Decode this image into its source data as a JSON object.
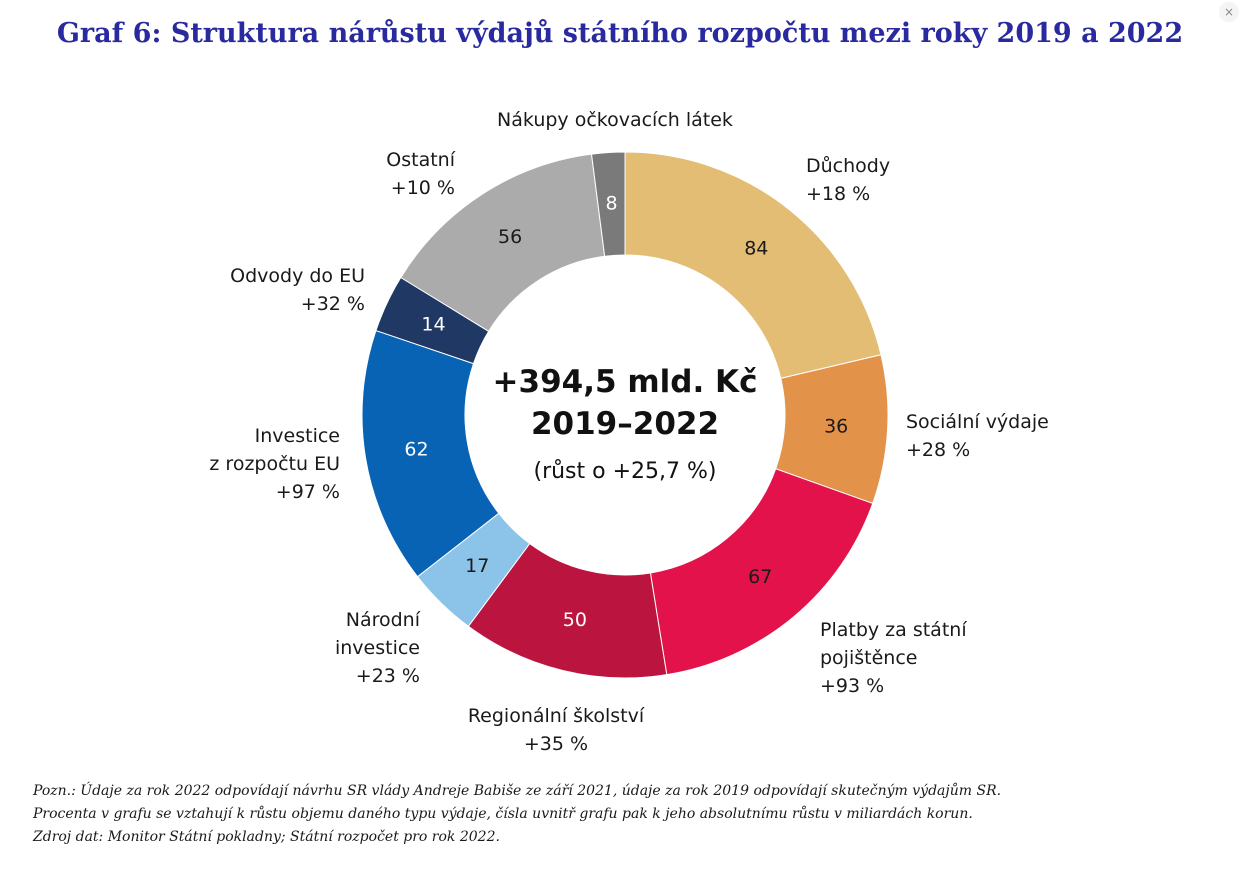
{
  "title": "Graf 6: Struktura nárůstu výdajů státního rozpočtu mezi roky 2019 a 2022",
  "close_icon": "×",
  "center": {
    "main": "+394,5 mld. Kč",
    "period": "2019–2022",
    "growth": "(růst o +25,7 %)"
  },
  "labels": {
    "duchody": [
      "Důchody",
      "+18 %"
    ],
    "socialni": [
      "Sociální výdaje",
      "+28 %"
    ],
    "platby": [
      "Platby za státní",
      "pojištěnce",
      "+93 %"
    ],
    "skolstvi": [
      "Regionální školství",
      "+35 %"
    ],
    "narodni": [
      "Národní",
      "investice",
      "+23 %"
    ],
    "investice": [
      "Investice",
      "z rozpočtu EU",
      "+97 %"
    ],
    "odvody": [
      "Odvody do EU",
      "+32 %"
    ],
    "ostatni": [
      "Ostatní",
      "+10 %"
    ],
    "ockovani": [
      "Nákupy očkovacích látek"
    ]
  },
  "chart_data": {
    "type": "pie",
    "title": "Graf 6: Struktura nárůstu výdajů státního rozpočtu mezi roky 2019 a 2022",
    "total_label": "+394,5 mld. Kč",
    "slices": [
      {
        "name": "Důchody",
        "value": 84,
        "growth": "+18 %",
        "color": "#e3bd74",
        "label_color": "#1a1a1a"
      },
      {
        "name": "Sociální výdaje",
        "value": 36,
        "growth": "+28 %",
        "color": "#e3924a",
        "label_color": "#1a1a1a"
      },
      {
        "name": "Platby za státní pojištěnce",
        "value": 67,
        "growth": "+93 %",
        "color": "#e3124a",
        "label_color": "#1a1a1a"
      },
      {
        "name": "Regionální školství",
        "value": 50,
        "growth": "+35 %",
        "color": "#bb143e",
        "label_color": "#ffffff"
      },
      {
        "name": "Národní investice",
        "value": 17,
        "growth": "+23 %",
        "color": "#8cc3e8",
        "label_color": "#1a1a1a"
      },
      {
        "name": "Investice z rozpočtu EU",
        "value": 62,
        "growth": "+97 %",
        "color": "#0863b5",
        "label_color": "#ffffff"
      },
      {
        "name": "Odvody do EU",
        "value": 14,
        "growth": "+32 %",
        "color": "#1f3864",
        "label_color": "#ffffff"
      },
      {
        "name": "Ostatní",
        "value": 56,
        "growth": "+10 %",
        "color": "#ababab",
        "label_color": "#1a1a1a"
      },
      {
        "name": "Nákupy očkovacích látek",
        "value": 8,
        "growth": "",
        "color": "#7a7a7a",
        "label_color": "#ffffff"
      }
    ]
  },
  "notes": [
    "Pozn.: Údaje za rok 2022 odpovídají návrhu SR vlády Andreje Babiše ze září 2021, údaje za rok 2019 odpovídají skutečným výdajům SR.",
    "Procenta v grafu se vztahují k růstu objemu daného typu výdaje, čísla uvnitř grafu pak k jeho absolutnímu růstu v miliardách korun.",
    "Zdroj dat: Monitor Státní pokladny; Státní rozpočet pro rok 2022."
  ]
}
